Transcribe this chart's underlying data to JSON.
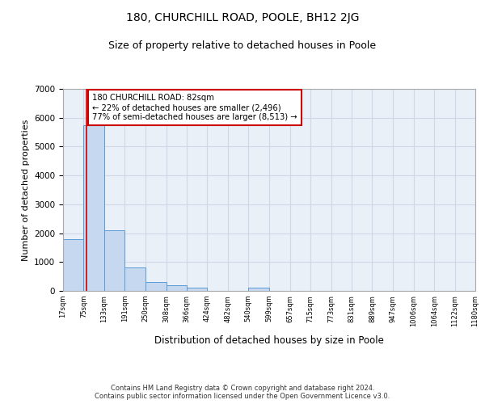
{
  "title_line1": "180, CHURCHILL ROAD, POOLE, BH12 2JG",
  "title_line2": "Size of property relative to detached houses in Poole",
  "xlabel": "Distribution of detached houses by size in Poole",
  "ylabel": "Number of detached properties",
  "footnote": "Contains HM Land Registry data © Crown copyright and database right 2024.\nContains public sector information licensed under the Open Government Licence v3.0.",
  "annotation_text": "180 CHURCHILL ROAD: 82sqm\n← 22% of detached houses are smaller (2,496)\n77% of semi-detached houses are larger (8,513) →",
  "bar_edges": [
    17,
    75,
    133,
    191,
    250,
    308,
    366,
    424,
    482,
    540,
    599,
    657,
    715,
    773,
    831,
    889,
    947,
    1006,
    1064,
    1122,
    1180
  ],
  "bar_heights": [
    1800,
    5750,
    2100,
    800,
    300,
    200,
    120,
    0,
    0,
    100,
    0,
    0,
    0,
    0,
    0,
    0,
    0,
    0,
    0,
    0
  ],
  "bar_color": "#c5d8f0",
  "bar_edge_color": "#5b9bd5",
  "red_line_x": 82,
  "ylim": [
    0,
    7000
  ],
  "xlim": [
    17,
    1180
  ],
  "tick_labels": [
    "17sqm",
    "75sqm",
    "133sqm",
    "191sqm",
    "250sqm",
    "308sqm",
    "366sqm",
    "424sqm",
    "482sqm",
    "540sqm",
    "599sqm",
    "657sqm",
    "715sqm",
    "773sqm",
    "831sqm",
    "889sqm",
    "947sqm",
    "1006sqm",
    "1064sqm",
    "1122sqm",
    "1180sqm"
  ],
  "grid_color": "#d0d8e8",
  "background_color": "#eaf0f8",
  "annotation_box_color": "#ffffff",
  "annotation_box_edgecolor": "#cc0000",
  "title1_fontsize": 10,
  "title2_fontsize": 9,
  "xlabel_fontsize": 8.5,
  "ylabel_fontsize": 8
}
